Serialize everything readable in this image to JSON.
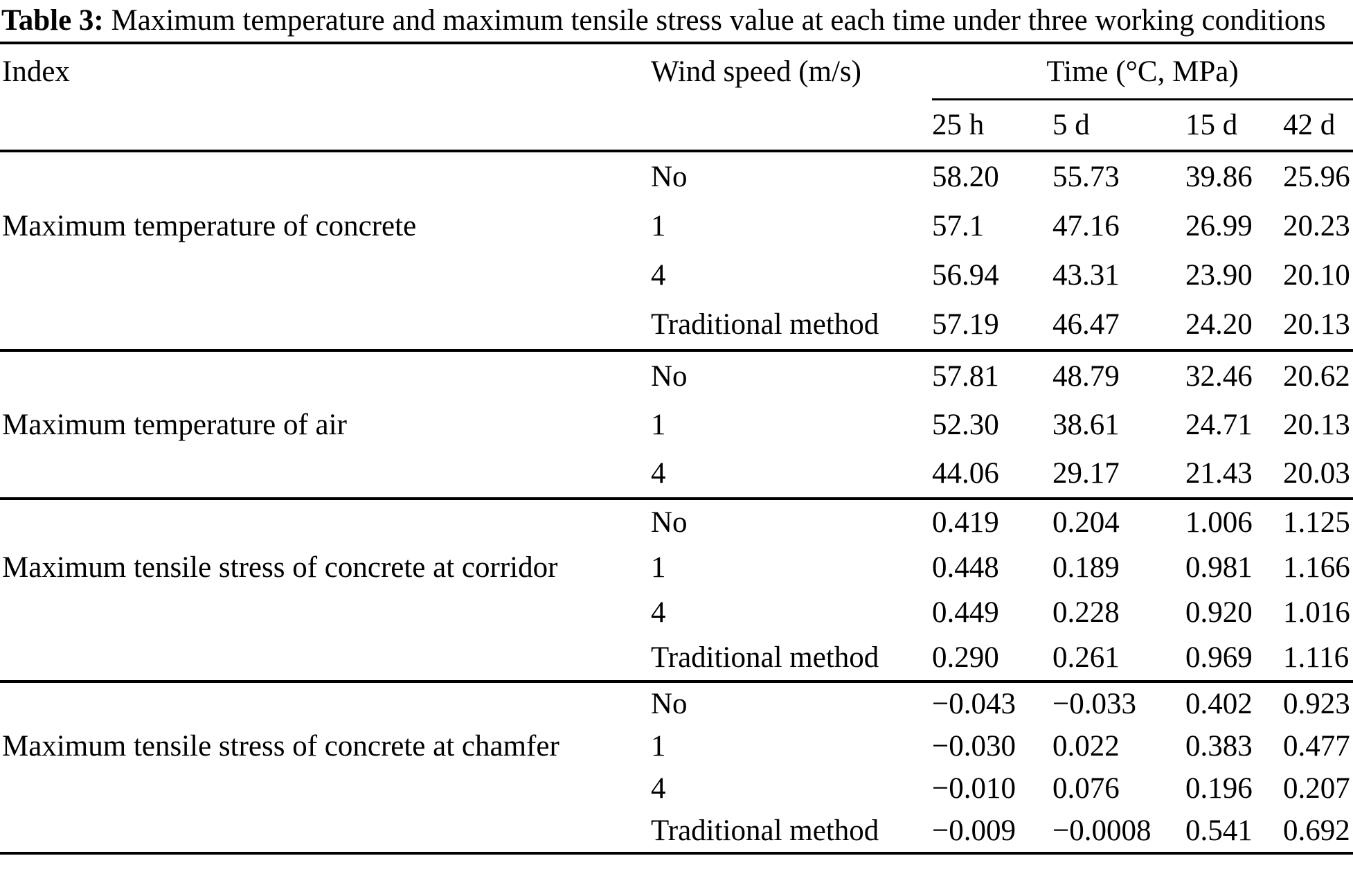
{
  "table": {
    "caption": {
      "label": "Table 3:",
      "text": " Maximum temperature and maximum tensile stress value at each time under three working conditions"
    },
    "columns": {
      "index": "Index",
      "wind_speed": "Wind speed (m/s)",
      "time_group": "Time (°C, MPa)",
      "time_subcolumns": [
        "25 h",
        "5 d",
        "15 d",
        "42 d"
      ]
    },
    "groups": [
      {
        "index": "Maximum temperature of concrete",
        "rows": [
          {
            "wind_speed": "No",
            "values": [
              "58.20",
              "55.73",
              "39.86",
              "25.96"
            ]
          },
          {
            "wind_speed": "1",
            "values": [
              "57.1",
              "47.16",
              "26.99",
              "20.23"
            ]
          },
          {
            "wind_speed": "4",
            "values": [
              "56.94",
              "43.31",
              "23.90",
              "20.10"
            ]
          },
          {
            "wind_speed": "Traditional method",
            "values": [
              "57.19",
              "46.47",
              "24.20",
              "20.13"
            ]
          }
        ]
      },
      {
        "index": "Maximum temperature of air",
        "rows": [
          {
            "wind_speed": "No",
            "values": [
              "57.81",
              "48.79",
              "32.46",
              "20.62"
            ]
          },
          {
            "wind_speed": "1",
            "values": [
              "52.30",
              "38.61",
              "24.71",
              "20.13"
            ]
          },
          {
            "wind_speed": "4",
            "values": [
              "44.06",
              "29.17",
              "21.43",
              "20.03"
            ]
          }
        ]
      },
      {
        "index": "Maximum tensile stress of concrete at corridor",
        "rows": [
          {
            "wind_speed": "No",
            "values": [
              "0.419",
              "0.204",
              "1.006",
              "1.125"
            ]
          },
          {
            "wind_speed": "1",
            "values": [
              "0.448",
              "0.189",
              "0.981",
              "1.166"
            ]
          },
          {
            "wind_speed": "4",
            "values": [
              "0.449",
              "0.228",
              "0.920",
              "1.016"
            ]
          },
          {
            "wind_speed": "Traditional method",
            "values": [
              "0.290",
              "0.261",
              "0.969",
              "1.116"
            ]
          }
        ]
      },
      {
        "index": "Maximum tensile stress of concrete at chamfer",
        "rows": [
          {
            "wind_speed": "No",
            "values": [
              "−0.043",
              "−0.033",
              "0.402",
              "0.923"
            ]
          },
          {
            "wind_speed": "1",
            "values": [
              "−0.030",
              "0.022",
              "0.383",
              "0.477"
            ]
          },
          {
            "wind_speed": "4",
            "values": [
              "−0.010",
              "0.076",
              "0.196",
              "0.207"
            ]
          },
          {
            "wind_speed": "Traditional method",
            "values": [
              "−0.009",
              "−0.0008",
              "0.541",
              "0.692"
            ]
          }
        ]
      }
    ]
  },
  "colors": {
    "text": "#000000",
    "background": "#ffffff",
    "rule": "#000000"
  }
}
